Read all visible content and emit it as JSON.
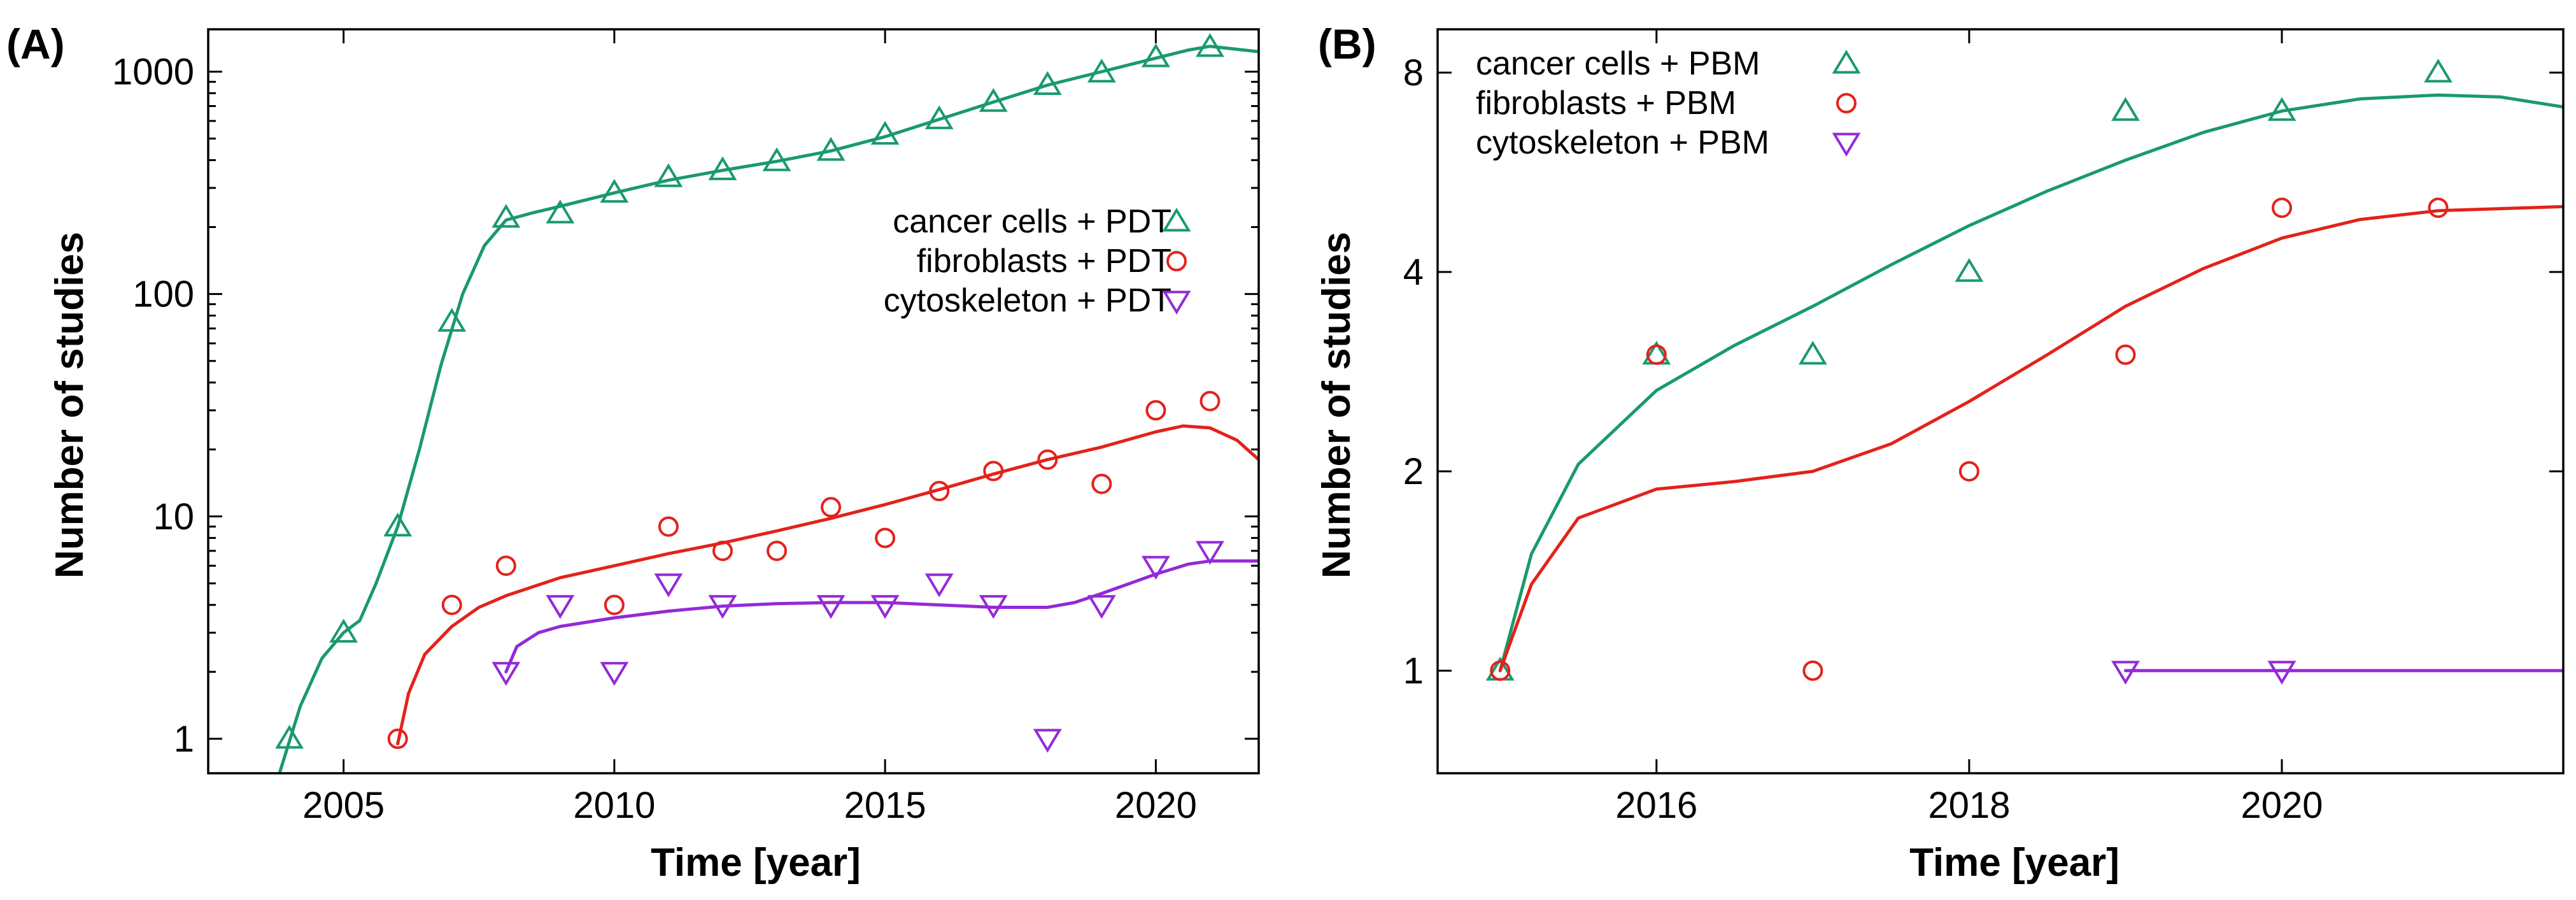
{
  "colors": {
    "cancer": "#1a9a6c",
    "fibro": "#e3221b",
    "cyto": "#9429d8"
  },
  "chart_data": [
    {
      "type": "scatter",
      "panel_label": "(A)",
      "xlabel": "Time [year]",
      "ylabel": "Number of studies",
      "yscale": "log",
      "xlim": [
        2002.5,
        2021.9
      ],
      "ylim": [
        0.7,
        1550
      ],
      "xticks": [
        2005,
        2010,
        2015,
        2020
      ],
      "yticks": [
        1,
        10,
        100,
        1000
      ],
      "legend_position": "upper-right",
      "series": [
        {
          "name": "cancer cells + PDT",
          "marker": "triangle-up",
          "color": "#1a9a6c",
          "points": [
            [
              2004,
              1
            ],
            [
              2005,
              3
            ],
            [
              2006,
              9
            ],
            [
              2007,
              75
            ],
            [
              2008,
              220
            ],
            [
              2009,
              230
            ],
            [
              2010,
              285
            ],
            [
              2011,
              335
            ],
            [
              2012,
              360
            ],
            [
              2013,
              395
            ],
            [
              2014,
              440
            ],
            [
              2015,
              520
            ],
            [
              2016,
              610
            ],
            [
              2017,
              730
            ],
            [
              2018,
              870
            ],
            [
              2019,
              990
            ],
            [
              2020,
              1160
            ],
            [
              2021,
              1290
            ]
          ],
          "fit": [
            [
              2003.8,
              0.68
            ],
            [
              2004.2,
              1.4
            ],
            [
              2004.6,
              2.3
            ],
            [
              2005,
              3
            ],
            [
              2005.3,
              3.4
            ],
            [
              2005.6,
              5
            ],
            [
              2006,
              9
            ],
            [
              2006.4,
              20
            ],
            [
              2006.8,
              48
            ],
            [
              2007.2,
              100
            ],
            [
              2007.6,
              165
            ],
            [
              2008,
              215
            ],
            [
              2008.5,
              232
            ],
            [
              2009,
              248
            ],
            [
              2010,
              285
            ],
            [
              2011,
              325
            ],
            [
              2012,
              360
            ],
            [
              2013,
              395
            ],
            [
              2014,
              440
            ],
            [
              2015,
              510
            ],
            [
              2016,
              610
            ],
            [
              2017,
              730
            ],
            [
              2018,
              870
            ],
            [
              2019,
              1000
            ],
            [
              2020,
              1150
            ],
            [
              2020.6,
              1250
            ],
            [
              2021,
              1300
            ],
            [
              2021.9,
              1230
            ]
          ]
        },
        {
          "name": "fibroblasts + PDT",
          "marker": "circle",
          "color": "#e3221b",
          "points": [
            [
              2006,
              1
            ],
            [
              2007,
              4
            ],
            [
              2008,
              6
            ],
            [
              2010,
              4
            ],
            [
              2011,
              9
            ],
            [
              2012,
              7
            ],
            [
              2013,
              7
            ],
            [
              2014,
              11
            ],
            [
              2015,
              8
            ],
            [
              2016,
              13
            ],
            [
              2017,
              16
            ],
            [
              2018,
              18
            ],
            [
              2019,
              14
            ],
            [
              2020,
              30
            ],
            [
              2021,
              33
            ]
          ],
          "fit": [
            [
              2006,
              0.95
            ],
            [
              2006.2,
              1.6
            ],
            [
              2006.5,
              2.4
            ],
            [
              2007,
              3.2
            ],
            [
              2007.5,
              3.9
            ],
            [
              2008,
              4.4
            ],
            [
              2009,
              5.3
            ],
            [
              2010,
              6
            ],
            [
              2011,
              6.8
            ],
            [
              2012,
              7.6
            ],
            [
              2013,
              8.6
            ],
            [
              2014,
              9.8
            ],
            [
              2015,
              11.3
            ],
            [
              2016,
              13.2
            ],
            [
              2017,
              15.5
            ],
            [
              2018,
              18
            ],
            [
              2019,
              20.5
            ],
            [
              2020,
              24
            ],
            [
              2020.5,
              25.5
            ],
            [
              2021,
              25
            ],
            [
              2021.5,
              22
            ],
            [
              2021.9,
              18
            ]
          ]
        },
        {
          "name": "cytoskeleton + PDT",
          "marker": "triangle-down",
          "color": "#9429d8",
          "points": [
            [
              2008,
              2
            ],
            [
              2009,
              4
            ],
            [
              2010,
              2
            ],
            [
              2011,
              5
            ],
            [
              2012,
              4
            ],
            [
              2014,
              4
            ],
            [
              2015,
              4
            ],
            [
              2016,
              5
            ],
            [
              2017,
              4
            ],
            [
              2018,
              1
            ],
            [
              2019,
              4
            ],
            [
              2020,
              6
            ],
            [
              2021,
              7
            ]
          ],
          "fit": [
            [
              2008,
              2
            ],
            [
              2008.2,
              2.6
            ],
            [
              2008.6,
              3
            ],
            [
              2009,
              3.2
            ],
            [
              2010,
              3.5
            ],
            [
              2011,
              3.75
            ],
            [
              2012,
              3.95
            ],
            [
              2013,
              4.05
            ],
            [
              2014,
              4.1
            ],
            [
              2015,
              4.1
            ],
            [
              2016,
              4
            ],
            [
              2017,
              3.9
            ],
            [
              2018,
              3.9
            ],
            [
              2018.5,
              4.1
            ],
            [
              2019,
              4.5
            ],
            [
              2020,
              5.5
            ],
            [
              2020.6,
              6.1
            ],
            [
              2021,
              6.3
            ],
            [
              2021.9,
              6.3
            ]
          ]
        }
      ]
    },
    {
      "type": "scatter",
      "panel_label": "(B)",
      "xlabel": "Time [year]",
      "ylabel": "Number of studies",
      "yscale": "log2",
      "xlim": [
        2014.6,
        2021.8
      ],
      "ylim": [
        0.7,
        9.3
      ],
      "xticks": [
        2016,
        2018,
        2020
      ],
      "yticks": [
        1,
        2,
        4,
        8
      ],
      "legend_position": "upper-left",
      "series": [
        {
          "name": "cancer cells + PBM",
          "marker": "triangle-up",
          "color": "#1a9a6c",
          "points": [
            [
              2015,
              1
            ],
            [
              2016,
              3
            ],
            [
              2017,
              3
            ],
            [
              2018,
              4
            ],
            [
              2019,
              7
            ],
            [
              2020,
              7
            ],
            [
              2021,
              8
            ]
          ],
          "fit": [
            [
              2015,
              1
            ],
            [
              2015.2,
              1.5
            ],
            [
              2015.5,
              2.05
            ],
            [
              2016,
              2.65
            ],
            [
              2016.5,
              3.1
            ],
            [
              2017,
              3.55
            ],
            [
              2017.5,
              4.1
            ],
            [
              2018,
              4.7
            ],
            [
              2018.5,
              5.3
            ],
            [
              2019,
              5.9
            ],
            [
              2019.5,
              6.5
            ],
            [
              2020,
              7
            ],
            [
              2020.5,
              7.3
            ],
            [
              2021,
              7.4
            ],
            [
              2021.4,
              7.35
            ],
            [
              2021.8,
              7.1
            ]
          ]
        },
        {
          "name": "fibroblasts + PBM",
          "marker": "circle",
          "color": "#e3221b",
          "points": [
            [
              2015,
              1
            ],
            [
              2016,
              3
            ],
            [
              2017,
              1
            ],
            [
              2018,
              2
            ],
            [
              2019,
              3
            ],
            [
              2020,
              5
            ],
            [
              2021,
              5
            ]
          ],
          "fit": [
            [
              2015,
              1
            ],
            [
              2015.2,
              1.35
            ],
            [
              2015.5,
              1.7
            ],
            [
              2016,
              1.88
            ],
            [
              2016.5,
              1.93
            ],
            [
              2017,
              2
            ],
            [
              2017.5,
              2.2
            ],
            [
              2018,
              2.55
            ],
            [
              2018.5,
              3
            ],
            [
              2019,
              3.55
            ],
            [
              2019.5,
              4.05
            ],
            [
              2020,
              4.5
            ],
            [
              2020.5,
              4.8
            ],
            [
              2021,
              4.95
            ],
            [
              2021.8,
              5.02
            ]
          ]
        },
        {
          "name": "cytoskeleton + PBM",
          "marker": "triangle-down",
          "color": "#9429d8",
          "points": [
            [
              2019,
              1
            ],
            [
              2020,
              1
            ]
          ],
          "fit": [
            [
              2019,
              1
            ],
            [
              2021.8,
              1
            ]
          ]
        }
      ]
    }
  ]
}
